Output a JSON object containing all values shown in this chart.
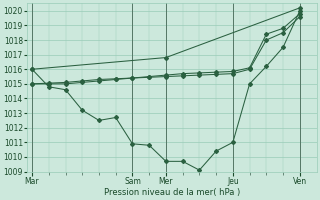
{
  "background_color": "#cce8dc",
  "grid_color": "#99ccb8",
  "line_color": "#2a6040",
  "xlabel": "Pression niveau de la mer( hPa )",
  "ylim": [
    1009,
    1020.5
  ],
  "yticks": [
    1009,
    1010,
    1011,
    1012,
    1013,
    1014,
    1015,
    1016,
    1017,
    1018,
    1019,
    1020
  ],
  "xtick_labels": [
    "Mar",
    "Sam",
    "Mer",
    "Jeu",
    "Ven"
  ],
  "xtick_positions": [
    0,
    6,
    8,
    12,
    16
  ],
  "xlim": [
    -0.3,
    17.0
  ],
  "series": [
    {
      "x": [
        0,
        1,
        2,
        3,
        4,
        5,
        6,
        7,
        8,
        9,
        10,
        11,
        12,
        13,
        14,
        15,
        16
      ],
      "y": [
        1016.0,
        1014.8,
        1014.6,
        1013.2,
        1012.5,
        1012.7,
        1010.9,
        1010.8,
        1009.7,
        1009.7,
        1009.1,
        1010.4,
        1011.0,
        1015.0,
        1016.2,
        1017.5,
        1020.0
      ]
    },
    {
      "x": [
        0,
        8,
        16
      ],
      "y": [
        1016.0,
        1016.8,
        1020.2
      ]
    },
    {
      "x": [
        0,
        1,
        2,
        3,
        4,
        5,
        6,
        7,
        8,
        9,
        10,
        11,
        12,
        13,
        14,
        15,
        16
      ],
      "y": [
        1015.0,
        1015.0,
        1015.0,
        1015.1,
        1015.2,
        1015.3,
        1015.4,
        1015.5,
        1015.6,
        1015.7,
        1015.75,
        1015.8,
        1015.85,
        1016.1,
        1018.4,
        1018.8,
        1019.8
      ]
    },
    {
      "x": [
        0,
        1,
        2,
        3,
        4,
        5,
        6,
        7,
        8,
        9,
        10,
        11,
        12,
        13,
        14,
        15,
        16
      ],
      "y": [
        1015.0,
        1015.05,
        1015.1,
        1015.2,
        1015.3,
        1015.35,
        1015.4,
        1015.45,
        1015.5,
        1015.55,
        1015.6,
        1015.65,
        1015.7,
        1016.0,
        1018.0,
        1018.5,
        1019.6
      ]
    }
  ]
}
